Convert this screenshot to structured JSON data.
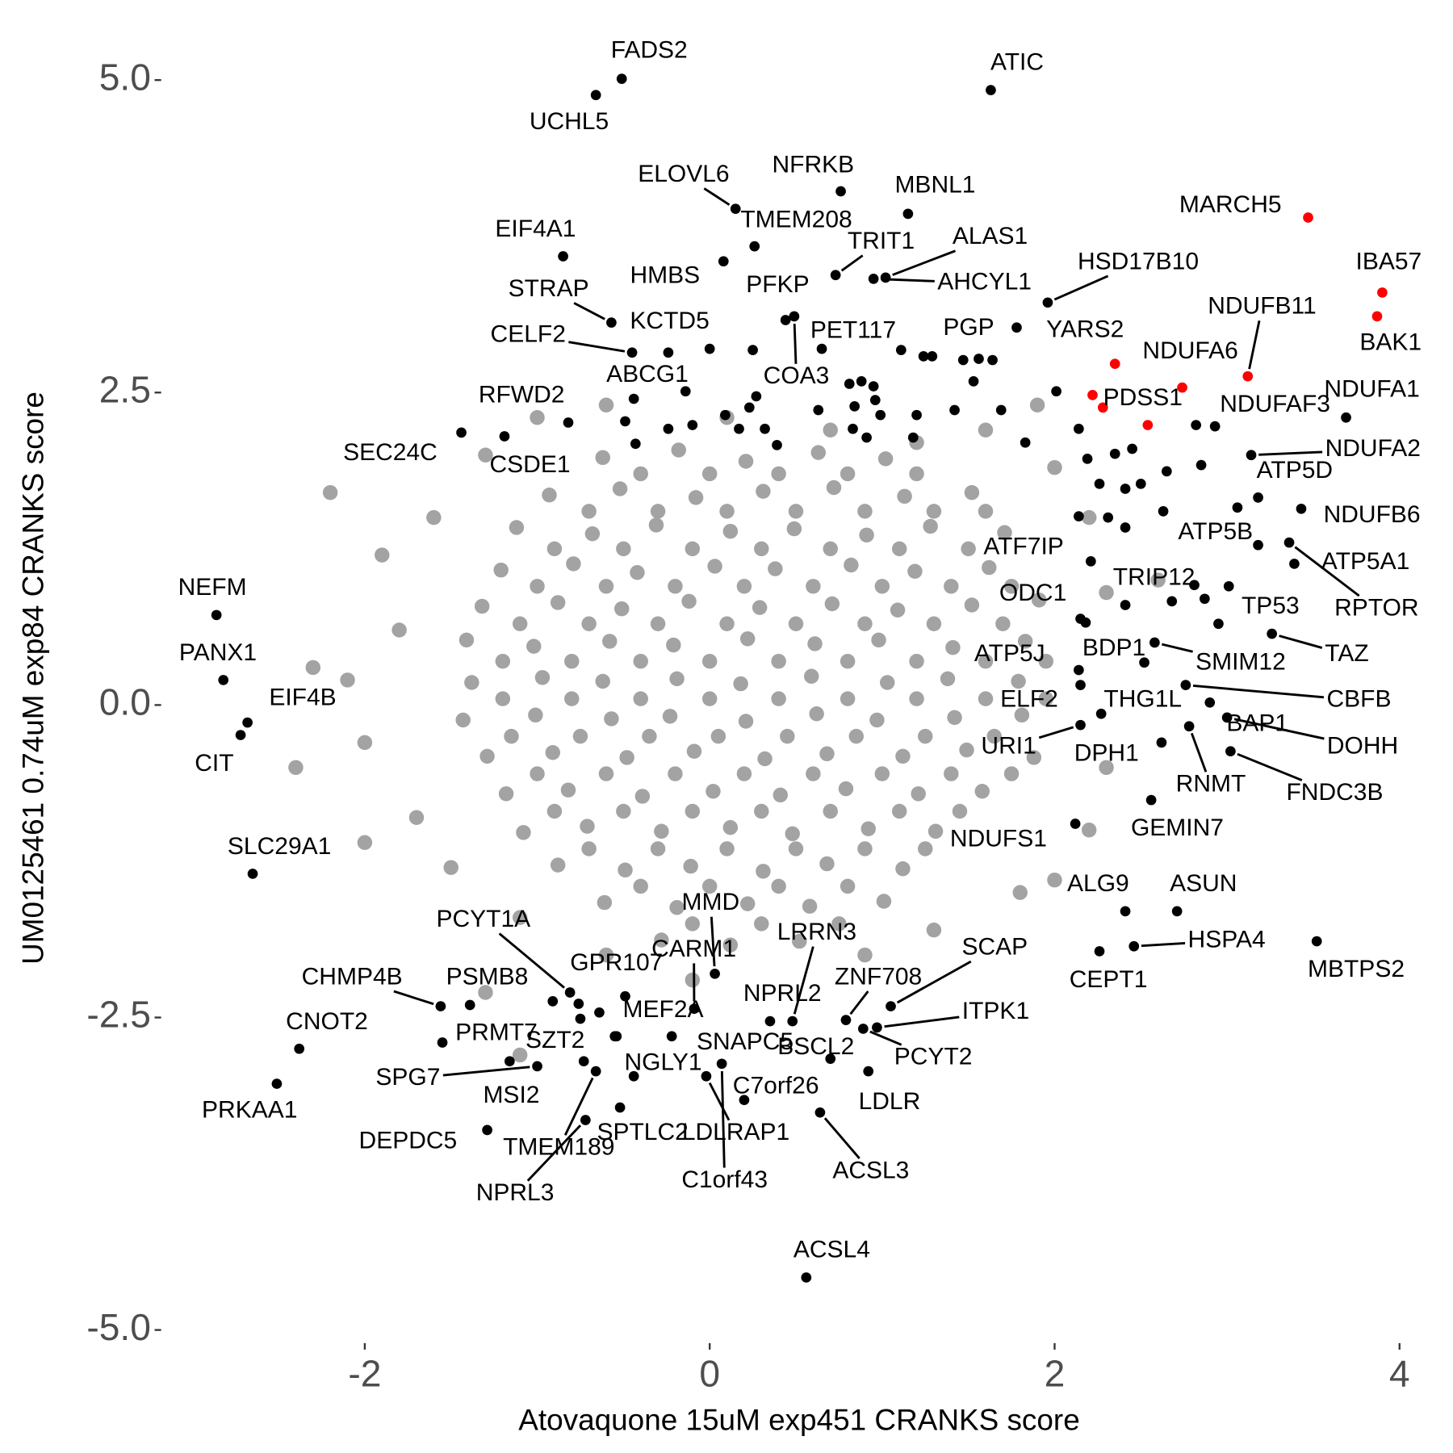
{
  "chart_data": {
    "type": "scatter",
    "x_label": "Atovaquone 15uM exp451 CRANKS score",
    "y_label": "UM0125461 0.74uM exp84 CRANKS score",
    "xlim": [
      -3.17,
      4.04
    ],
    "ylim": [
      -5.09,
      5.35
    ],
    "xticks": [
      -2,
      0,
      2,
      4
    ],
    "yticks": [
      {
        "value": -5,
        "label": "-5.0"
      },
      -2.5,
      {
        "value": 0,
        "label": "0.0"
      },
      2.5,
      {
        "value": 5,
        "label": "5.0"
      }
    ],
    "grid": false,
    "series": [
      {
        "color": "#a3a3a3",
        "x": [
          -0.62,
          -0.18,
          0.21,
          0.63,
          1.02,
          -0.93,
          -0.52,
          -0.08,
          0.31,
          0.72,
          1.13,
          1.52,
          -1.12,
          -0.68,
          -0.31,
          0.12,
          0.49,
          0.91,
          1.28,
          1.71,
          -1.21,
          -0.79,
          -0.42,
          0.03,
          0.38,
          0.82,
          1.19,
          1.62,
          -1.32,
          -0.88,
          -0.51,
          -0.12,
          0.29,
          0.71,
          1.09,
          1.52,
          1.91,
          -1.41,
          -1.02,
          -0.58,
          -0.21,
          0.22,
          0.61,
          0.98,
          1.41,
          1.83,
          -1.38,
          -0.97,
          -0.62,
          -0.19,
          0.18,
          0.59,
          1.03,
          1.38,
          1.79,
          -1.43,
          -1.01,
          -0.57,
          -0.23,
          0.21,
          0.62,
          0.97,
          1.42,
          1.81,
          -1.29,
          -0.91,
          -0.48,
          -0.09,
          0.32,
          0.68,
          1.12,
          1.49,
          1.88,
          -1.18,
          -0.82,
          -0.39,
          0.02,
          0.41,
          0.79,
          1.21,
          1.58,
          -1.08,
          -0.71,
          -0.28,
          0.12,
          0.48,
          0.92,
          1.31,
          -0.88,
          -0.49,
          -0.11,
          0.31,
          0.68,
          1.12,
          -0.61,
          -0.19,
          0.22,
          0.58,
          1.01,
          -0.28,
          0.12,
          0.52,
          -0.4,
          0.0,
          0.4,
          0.8,
          1.2,
          -0.7,
          -0.3,
          0.1,
          0.5,
          0.9,
          1.3,
          1.6,
          -0.9,
          -0.5,
          -0.1,
          0.3,
          0.7,
          1.1,
          1.5,
          -1.0,
          -0.6,
          -0.2,
          0.2,
          0.6,
          1.0,
          1.4,
          1.75,
          -1.1,
          -0.7,
          -0.3,
          0.1,
          0.5,
          0.9,
          1.3,
          1.7,
          -1.2,
          -0.8,
          -0.4,
          0.0,
          0.4,
          0.8,
          1.2,
          1.6,
          1.95,
          -1.2,
          -0.8,
          -0.4,
          0.0,
          0.4,
          0.8,
          1.2,
          1.6,
          1.95,
          -1.15,
          -0.75,
          -0.35,
          0.05,
          0.45,
          0.85,
          1.25,
          1.65,
          -1.0,
          -0.6,
          -0.2,
          0.2,
          0.6,
          1.0,
          1.4,
          1.75,
          -0.9,
          -0.5,
          -0.1,
          0.3,
          0.7,
          1.1,
          1.45,
          -0.7,
          -0.3,
          0.1,
          0.5,
          0.9,
          1.25,
          -0.4,
          0.0,
          0.4,
          0.8,
          -0.1,
          0.3,
          0.75,
          -2.1,
          -2.0,
          -1.9,
          -1.7,
          -1.8,
          -1.6,
          -1.5,
          -1.3,
          -1.0,
          -0.6,
          0.1,
          0.7,
          1.2,
          1.6,
          2.0,
          2.2,
          2.3,
          2.3,
          2.2,
          1.8,
          1.3,
          0.9,
          -0.1,
          -0.6,
          -1.1,
          -1.3,
          -2.4,
          -2.3,
          2.0,
          1.9,
          -1.1,
          -2.2,
          2.6,
          -2.0
        ],
        "y": [
          1.98,
          2.04,
          1.95,
          2.02,
          1.97,
          1.68,
          1.73,
          1.66,
          1.71,
          1.74,
          1.67,
          1.7,
          1.42,
          1.37,
          1.44,
          1.39,
          1.41,
          1.36,
          1.43,
          1.38,
          1.08,
          1.13,
          1.06,
          1.11,
          1.09,
          1.12,
          1.07,
          1.1,
          0.79,
          0.82,
          0.77,
          0.83,
          0.78,
          0.81,
          0.76,
          0.8,
          0.84,
          0.52,
          0.47,
          0.51,
          0.48,
          0.53,
          0.49,
          0.52,
          0.46,
          0.51,
          0.18,
          0.22,
          0.19,
          0.21,
          0.17,
          0.23,
          0.18,
          0.21,
          0.19,
          -0.12,
          -0.08,
          -0.11,
          -0.09,
          -0.13,
          -0.07,
          -0.12,
          -0.1,
          -0.08,
          -0.41,
          -0.38,
          -0.42,
          -0.37,
          -0.43,
          -0.39,
          -0.41,
          -0.36,
          -0.42,
          -0.71,
          -0.68,
          -0.73,
          -0.69,
          -0.72,
          -0.67,
          -0.71,
          -0.69,
          -1.02,
          -0.97,
          -1.01,
          -0.98,
          -1.03,
          -0.99,
          -1.01,
          -1.28,
          -1.32,
          -1.29,
          -1.33,
          -1.27,
          -1.31,
          -1.58,
          -1.62,
          -1.59,
          -1.61,
          -1.57,
          -1.88,
          -1.92,
          -1.89,
          1.85,
          1.85,
          1.85,
          1.85,
          1.85,
          1.55,
          1.55,
          1.55,
          1.55,
          1.55,
          1.55,
          1.55,
          1.25,
          1.25,
          1.25,
          1.25,
          1.25,
          1.25,
          1.25,
          0.95,
          0.95,
          0.95,
          0.95,
          0.95,
          0.95,
          0.95,
          0.95,
          0.65,
          0.65,
          0.65,
          0.65,
          0.65,
          0.65,
          0.65,
          0.65,
          0.35,
          0.35,
          0.35,
          0.35,
          0.35,
          0.35,
          0.35,
          0.35,
          0.35,
          0.05,
          0.05,
          0.05,
          0.05,
          0.05,
          0.05,
          0.05,
          0.05,
          0.05,
          -0.25,
          -0.25,
          -0.25,
          -0.25,
          -0.25,
          -0.25,
          -0.25,
          -0.25,
          -0.55,
          -0.55,
          -0.55,
          -0.55,
          -0.55,
          -0.55,
          -0.55,
          -0.55,
          -0.85,
          -0.85,
          -0.85,
          -0.85,
          -0.85,
          -0.85,
          -0.85,
          -1.15,
          -1.15,
          -1.15,
          -1.15,
          -1.15,
          -1.15,
          -1.45,
          -1.45,
          -1.45,
          -1.45,
          -1.75,
          -1.75,
          -1.75,
          0.2,
          -0.3,
          1.2,
          -0.9,
          0.6,
          1.5,
          -1.3,
          2.0,
          2.3,
          2.4,
          2.3,
          2.2,
          2.1,
          2.2,
          1.9,
          1.5,
          0.9,
          -0.5,
          -1.0,
          -1.5,
          -1.8,
          -2.0,
          -2.2,
          -2.0,
          -1.7,
          -2.3,
          -0.5,
          0.3,
          -1.4,
          2.4,
          -2.8,
          1.7,
          1.0,
          -1.1
        ]
      },
      {
        "color": "#000000",
        "labels": [
          "FADS2",
          "UCHL5",
          "ATIC",
          "NFRKB",
          "ELOVL6",
          "MBNL1",
          "TMEM208",
          "EIF4A1",
          "HMBS",
          "TRIT1",
          "ALAS1",
          "AHCYL1",
          "HSD17B10",
          "STRAP",
          "PFKP",
          "COA3",
          "CELF2",
          "KCTD5",
          "PET117",
          "PGP",
          "YARS2",
          "ABCG1",
          "NDUFAF3",
          "NDUFA1",
          "RFWD2",
          "SEC24C",
          "CSDE1",
          "NDUFA2",
          "ATP5D",
          "NDUFB6",
          "ATP5B",
          "ATF7IP",
          "ATP5A1",
          "RPTOR",
          "TRIP12",
          "ODC1",
          "TP53",
          "TAZ",
          "BDP1",
          "ATP5J",
          "SMIM12",
          "CBFB",
          "ELF2",
          "THG1L",
          "DOHH",
          "BAP1",
          "URI1",
          "DPH1",
          "FNDC3B",
          "RNMT",
          "GEMIN7",
          "NDUFS1",
          "NEFM",
          "PANX1",
          "EIF4B",
          "CIT",
          "SLC29A1",
          "ALG9",
          "ASUN",
          "HSPA4",
          "MBTPS2",
          "CEPT1",
          "MMD",
          "PCYT1A",
          "LRRN3",
          "SCAP",
          "CARM1",
          "GPR107",
          "PSMB8",
          "CHMP4B",
          "ZNF708",
          "NPRL2",
          "ITPK1",
          "MEF2A",
          "CNOT2",
          "PRMT7",
          "SZT2",
          "SNAPC5",
          "BSCL2",
          "PCYT2",
          "NGLY1",
          "MSI2",
          "SPG7",
          "C7orf26",
          "LDLR",
          "PRKAA1",
          "ACSL3",
          "SPTLC2",
          "LDLRAP1",
          "DEPDC5",
          "TMEM189",
          "C1orf43",
          "NPRL3",
          "ACSL4",
          null,
          null,
          null,
          null,
          null,
          null,
          null,
          null,
          null,
          null,
          null,
          null,
          null,
          null,
          null,
          null,
          null,
          null,
          null,
          null,
          null,
          null,
          null,
          null,
          null,
          null,
          null,
          null,
          null,
          null,
          null,
          null,
          null,
          null,
          null,
          null,
          null,
          null,
          null,
          null,
          null,
          null,
          null,
          null,
          null,
          null,
          null,
          null,
          null,
          null,
          null,
          null,
          null,
          null,
          null,
          null,
          null,
          null,
          null
        ],
        "x": [
          -0.51,
          -0.66,
          1.63,
          0.76,
          0.15,
          1.15,
          0.26,
          -0.85,
          0.08,
          0.73,
          1.02,
          0.95,
          1.96,
          -0.57,
          0.44,
          0.49,
          -0.45,
          -0.24,
          0.65,
          1.47,
          1.78,
          -0.44,
          2.93,
          3.69,
          -0.82,
          -1.44,
          -1.19,
          3.14,
          3.18,
          3.43,
          3.18,
          2.21,
          3.39,
          3.36,
          2.81,
          2.15,
          2.95,
          3.26,
          2.52,
          2.14,
          2.58,
          2.76,
          2.15,
          2.27,
          3.0,
          2.9,
          2.15,
          2.62,
          3.02,
          2.78,
          2.56,
          2.12,
          -2.86,
          -2.82,
          -2.68,
          -2.72,
          -2.65,
          2.41,
          2.71,
          2.46,
          3.52,
          2.26,
          0.03,
          -0.81,
          0.48,
          1.05,
          -0.09,
          -0.49,
          -1.39,
          -1.56,
          0.79,
          0.35,
          0.97,
          -0.55,
          -2.38,
          -1.55,
          -0.73,
          -0.22,
          0.7,
          0.89,
          -0.44,
          -1.16,
          -1.0,
          0.2,
          0.92,
          -2.51,
          0.64,
          -0.52,
          -0.02,
          -1.29,
          -0.66,
          0.07,
          -0.72,
          0.56,
          0.81,
          0.88,
          0.95,
          0.84,
          0.96,
          0.83,
          0.91,
          0.99,
          1.2,
          1.18,
          1.42,
          1.53,
          1.56,
          1.64,
          1.24,
          1.11,
          1.29,
          1.69,
          1.83,
          2.01,
          2.14,
          2.19,
          2.35,
          2.45,
          2.26,
          2.41,
          2.5,
          2.65,
          2.63,
          2.31,
          2.41,
          2.14,
          2.85,
          2.82,
          3.06,
          3.01,
          2.87,
          2.68,
          2.41,
          2.18,
          0.23,
          0.27,
          0.32,
          0.39,
          0.63,
          0.09,
          0.17,
          -0.1,
          -0.24,
          -0.49,
          -0.43,
          -0.14,
          0.0,
          0.25,
          -0.91,
          -0.76,
          -0.64,
          -0.75,
          -0.54
        ],
        "y": [
          5.01,
          4.88,
          4.92,
          4.11,
          3.97,
          3.93,
          3.67,
          3.59,
          3.55,
          3.44,
          3.42,
          3.41,
          3.22,
          3.06,
          3.08,
          3.11,
          2.82,
          2.82,
          2.85,
          2.76,
          3.02,
          2.45,
          2.23,
          2.3,
          2.26,
          2.18,
          2.15,
          2.0,
          1.66,
          1.57,
          1.28,
          1.15,
          1.13,
          1.3,
          0.96,
          0.69,
          0.65,
          0.57,
          0.34,
          0.28,
          0.5,
          0.16,
          0.16,
          -0.07,
          -0.1,
          0.02,
          -0.16,
          -0.3,
          -0.37,
          -0.17,
          -0.76,
          -0.95,
          0.72,
          0.2,
          -0.14,
          -0.24,
          -1.35,
          -1.65,
          -1.65,
          -1.93,
          -1.89,
          -1.97,
          -2.15,
          -2.3,
          -2.53,
          -2.41,
          -2.43,
          -2.33,
          -2.4,
          -2.41,
          -2.52,
          -2.53,
          -2.58,
          -2.65,
          -2.75,
          -2.7,
          -2.85,
          -2.65,
          -2.83,
          -2.59,
          -2.97,
          -2.85,
          -2.89,
          -3.16,
          -2.93,
          -3.03,
          -3.26,
          -3.22,
          -2.97,
          -3.4,
          -2.93,
          -2.87,
          -3.32,
          -4.58,
          2.57,
          2.59,
          2.55,
          2.39,
          2.44,
          2.21,
          2.14,
          2.32,
          2.32,
          2.14,
          2.36,
          2.59,
          2.77,
          2.76,
          2.79,
          2.84,
          2.79,
          2.36,
          2.1,
          2.51,
          2.21,
          1.97,
          2.01,
          2.05,
          1.77,
          1.73,
          1.77,
          1.87,
          1.55,
          1.5,
          1.42,
          1.51,
          1.92,
          2.24,
          1.58,
          0.95,
          0.85,
          0.83,
          0.8,
          0.66,
          2.38,
          2.47,
          2.21,
          2.08,
          2.36,
          2.32,
          2.21,
          2.24,
          2.21,
          2.27,
          2.09,
          2.51,
          2.85,
          2.84,
          -2.37,
          -2.39,
          -2.46,
          -2.51,
          -2.65
        ]
      },
      {
        "color": "#ff0000",
        "labels": [
          "MARCH5",
          "IBA57",
          "BAK1",
          "NDUFB11",
          "NDUFA6",
          "PDSS1",
          null,
          null,
          null
        ],
        "x": [
          3.47,
          3.9,
          3.87,
          3.12,
          2.74,
          2.54,
          2.35,
          2.22,
          2.28
        ],
        "y": [
          3.9,
          3.3,
          3.11,
          2.63,
          2.54,
          2.24,
          2.73,
          2.48,
          2.38
        ]
      }
    ]
  }
}
